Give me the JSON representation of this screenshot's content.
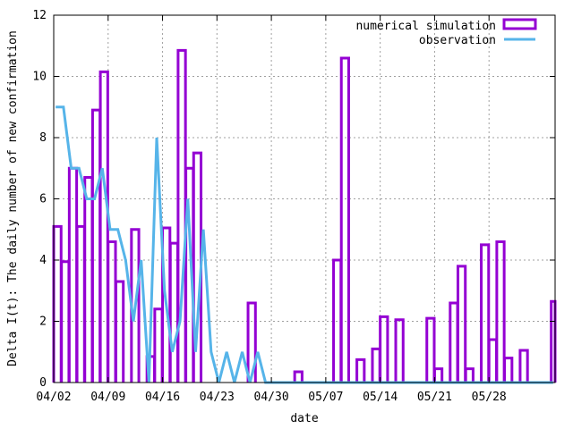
{
  "chart_data": {
    "type": "bar",
    "xlabel": "date",
    "ylabel": "Delta I(t): The daily number of new confirmation",
    "ylim": [
      0,
      12
    ],
    "yticks": [
      0,
      2,
      4,
      6,
      8,
      10,
      12
    ],
    "xticks": [
      "04/02",
      "04/09",
      "04/16",
      "04/23",
      "04/30",
      "05/07",
      "05/14",
      "05/21",
      "05/28"
    ],
    "grid": true,
    "legend": "top-right",
    "colors": {
      "simulation": "#9400d3",
      "observation": "#56b4e9",
      "grid": "#a0a0a0"
    },
    "series": [
      {
        "name": "numerical simulation",
        "kind": "bar-outline",
        "values": [
          5.1,
          3.95,
          7.0,
          5.1,
          6.7,
          8.9,
          10.15,
          4.6,
          3.3,
          0,
          5.0,
          0,
          0.85,
          2.4,
          5.05,
          4.55,
          10.85,
          7.0,
          7.5,
          0,
          0,
          0,
          0,
          0,
          0,
          2.6,
          0,
          0,
          0,
          0,
          0,
          0.35,
          0,
          0,
          0,
          0,
          4.0,
          10.6,
          0,
          0.75,
          0,
          1.1,
          2.15,
          0,
          2.05,
          0,
          0,
          0,
          2.1,
          0.45,
          0,
          2.6,
          3.8,
          0.45,
          0,
          4.5,
          1.4,
          4.6,
          0.8,
          0,
          1.05,
          0,
          0,
          0,
          2.65
        ]
      },
      {
        "name": "observation",
        "kind": "line",
        "values": [
          9,
          9,
          7,
          7,
          6,
          6,
          7,
          5,
          5,
          4,
          2,
          4,
          0,
          8,
          3,
          1,
          2,
          6,
          1,
          5,
          1,
          0,
          1,
          0,
          1,
          0,
          1,
          0,
          0,
          0,
          0,
          0,
          0,
          0,
          0,
          0,
          0,
          0,
          0,
          0,
          0,
          0,
          0,
          0,
          0,
          0,
          0,
          0,
          0,
          0,
          0,
          0,
          0,
          0,
          0,
          0,
          0,
          0,
          0,
          0,
          0,
          0,
          0,
          0,
          0
        ]
      }
    ]
  }
}
